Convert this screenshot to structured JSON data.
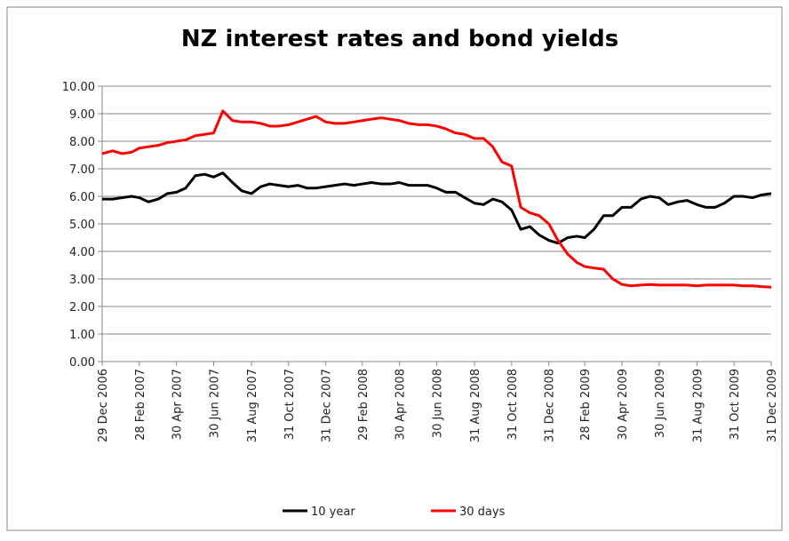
{
  "chart_data": {
    "type": "line",
    "title": "NZ interest rates and bond yields",
    "x": [
      "29 Dec 2006",
      "15 Jan 2007",
      "31 Jan 2007",
      "15 Feb 2007",
      "28 Feb 2007",
      "15 Mar 2007",
      "31 Mar 2007",
      "15 Apr 2007",
      "30 Apr 2007",
      "15 May 2007",
      "31 May 2007",
      "15 Jun 2007",
      "30 Jun 2007",
      "15 Jul 2007",
      "31 Jul 2007",
      "15 Aug 2007",
      "31 Aug 2007",
      "15 Sep 2007",
      "30 Sep 2007",
      "15 Oct 2007",
      "31 Oct 2007",
      "15 Nov 2007",
      "30 Nov 2007",
      "15 Dec 2007",
      "31 Dec 2007",
      "15 Jan 2008",
      "31 Jan 2008",
      "15 Feb 2008",
      "29 Feb 2008",
      "15 Mar 2008",
      "31 Mar 2008",
      "15 Apr 2008",
      "30 Apr 2008",
      "15 May 2008",
      "31 May 2008",
      "15 Jun 2008",
      "30 Jun 2008",
      "15 Jul 2008",
      "31 Jul 2008",
      "15 Aug 2008",
      "31 Aug 2008",
      "15 Sep 2008",
      "30 Sep 2008",
      "15 Oct 2008",
      "31 Oct 2008",
      "15 Nov 2008",
      "30 Nov 2008",
      "15 Dec 2008",
      "31 Dec 2008",
      "15 Jan 2009",
      "31 Jan 2009",
      "15 Feb 2009",
      "28 Feb 2009",
      "15 Mar 2009",
      "31 Mar 2009",
      "15 Apr 2009",
      "30 Apr 2009",
      "15 May 2009",
      "31 May 2009",
      "15 Jun 2009",
      "30 Jun 2009",
      "15 Jul 2009",
      "31 Jul 2009",
      "15 Aug 2009",
      "31 Aug 2009",
      "15 Sep 2009",
      "30 Sep 2009",
      "15 Oct 2009",
      "31 Oct 2009",
      "15 Nov 2009",
      "30 Nov 2009",
      "15 Dec 2009",
      "31 Dec 2009"
    ],
    "series": [
      {
        "name": "10 year",
        "color": "#000000",
        "values": [
          5.9,
          5.9,
          5.95,
          6.0,
          5.95,
          5.8,
          5.9,
          6.1,
          6.15,
          6.3,
          6.75,
          6.8,
          6.7,
          6.85,
          6.5,
          6.2,
          6.1,
          6.35,
          6.45,
          6.4,
          6.35,
          6.4,
          6.3,
          6.3,
          6.35,
          6.4,
          6.45,
          6.4,
          6.45,
          6.5,
          6.45,
          6.45,
          6.5,
          6.4,
          6.4,
          6.4,
          6.3,
          6.15,
          6.15,
          5.95,
          5.75,
          5.7,
          5.9,
          5.8,
          5.5,
          4.8,
          4.9,
          4.6,
          4.4,
          4.3,
          4.5,
          4.55,
          4.5,
          4.8,
          5.3,
          5.3,
          5.6,
          5.6,
          5.9,
          6.0,
          5.95,
          5.7,
          5.8,
          5.85,
          5.7,
          5.6,
          5.6,
          5.75,
          6.0,
          6.0,
          5.95,
          6.05,
          6.1
        ]
      },
      {
        "name": "30 days",
        "color": "#ff0000",
        "values": [
          7.55,
          7.65,
          7.55,
          7.6,
          7.75,
          7.8,
          7.85,
          7.95,
          8.0,
          8.05,
          8.2,
          8.25,
          8.3,
          9.1,
          8.75,
          8.7,
          8.7,
          8.65,
          8.55,
          8.55,
          8.6,
          8.7,
          8.8,
          8.9,
          8.7,
          8.65,
          8.65,
          8.7,
          8.75,
          8.8,
          8.85,
          8.8,
          8.75,
          8.65,
          8.6,
          8.6,
          8.55,
          8.45,
          8.3,
          8.25,
          8.1,
          8.1,
          7.8,
          7.25,
          7.1,
          5.6,
          5.4,
          5.3,
          5.0,
          4.4,
          3.9,
          3.6,
          3.45,
          3.4,
          3.35,
          3.0,
          2.8,
          2.75,
          2.78,
          2.8,
          2.78,
          2.78,
          2.78,
          2.78,
          2.75,
          2.78,
          2.78,
          2.78,
          2.78,
          2.75,
          2.75,
          2.72,
          2.7
        ]
      }
    ],
    "xlim": [
      "29 Dec 2006",
      "31 Dec 2009"
    ],
    "xticks": [
      "29 Dec 2006",
      "28 Feb 2007",
      "30 Apr 2007",
      "30 Jun 2007",
      "31 Aug 2007",
      "31 Oct 2007",
      "31 Dec 2007",
      "29 Feb 2008",
      "30 Apr 2008",
      "30 Jun 2008",
      "31 Aug 2008",
      "31 Oct 2008",
      "31 Dec 2008",
      "28 Feb 2009",
      "30 Apr 2009",
      "30 Jun 2009",
      "31 Aug 2009",
      "31 Oct 2009",
      "31 Dec 2009"
    ],
    "ylim": [
      0,
      10
    ],
    "yticks": [
      {
        "value": 0,
        "label": "0.00"
      },
      {
        "value": 1,
        "label": "1.00"
      },
      {
        "value": 2,
        "label": "2.00"
      },
      {
        "value": 3,
        "label": "3.00"
      },
      {
        "value": 4,
        "label": "4.00"
      },
      {
        "value": 5,
        "label": "5.00"
      },
      {
        "value": 6,
        "label": "6.00"
      },
      {
        "value": 7,
        "label": "7.00"
      },
      {
        "value": 8,
        "label": "8.00"
      },
      {
        "value": 9,
        "label": "9.00"
      },
      {
        "value": 10,
        "label": "10.00"
      }
    ],
    "grid": true,
    "legend": "bottom"
  }
}
